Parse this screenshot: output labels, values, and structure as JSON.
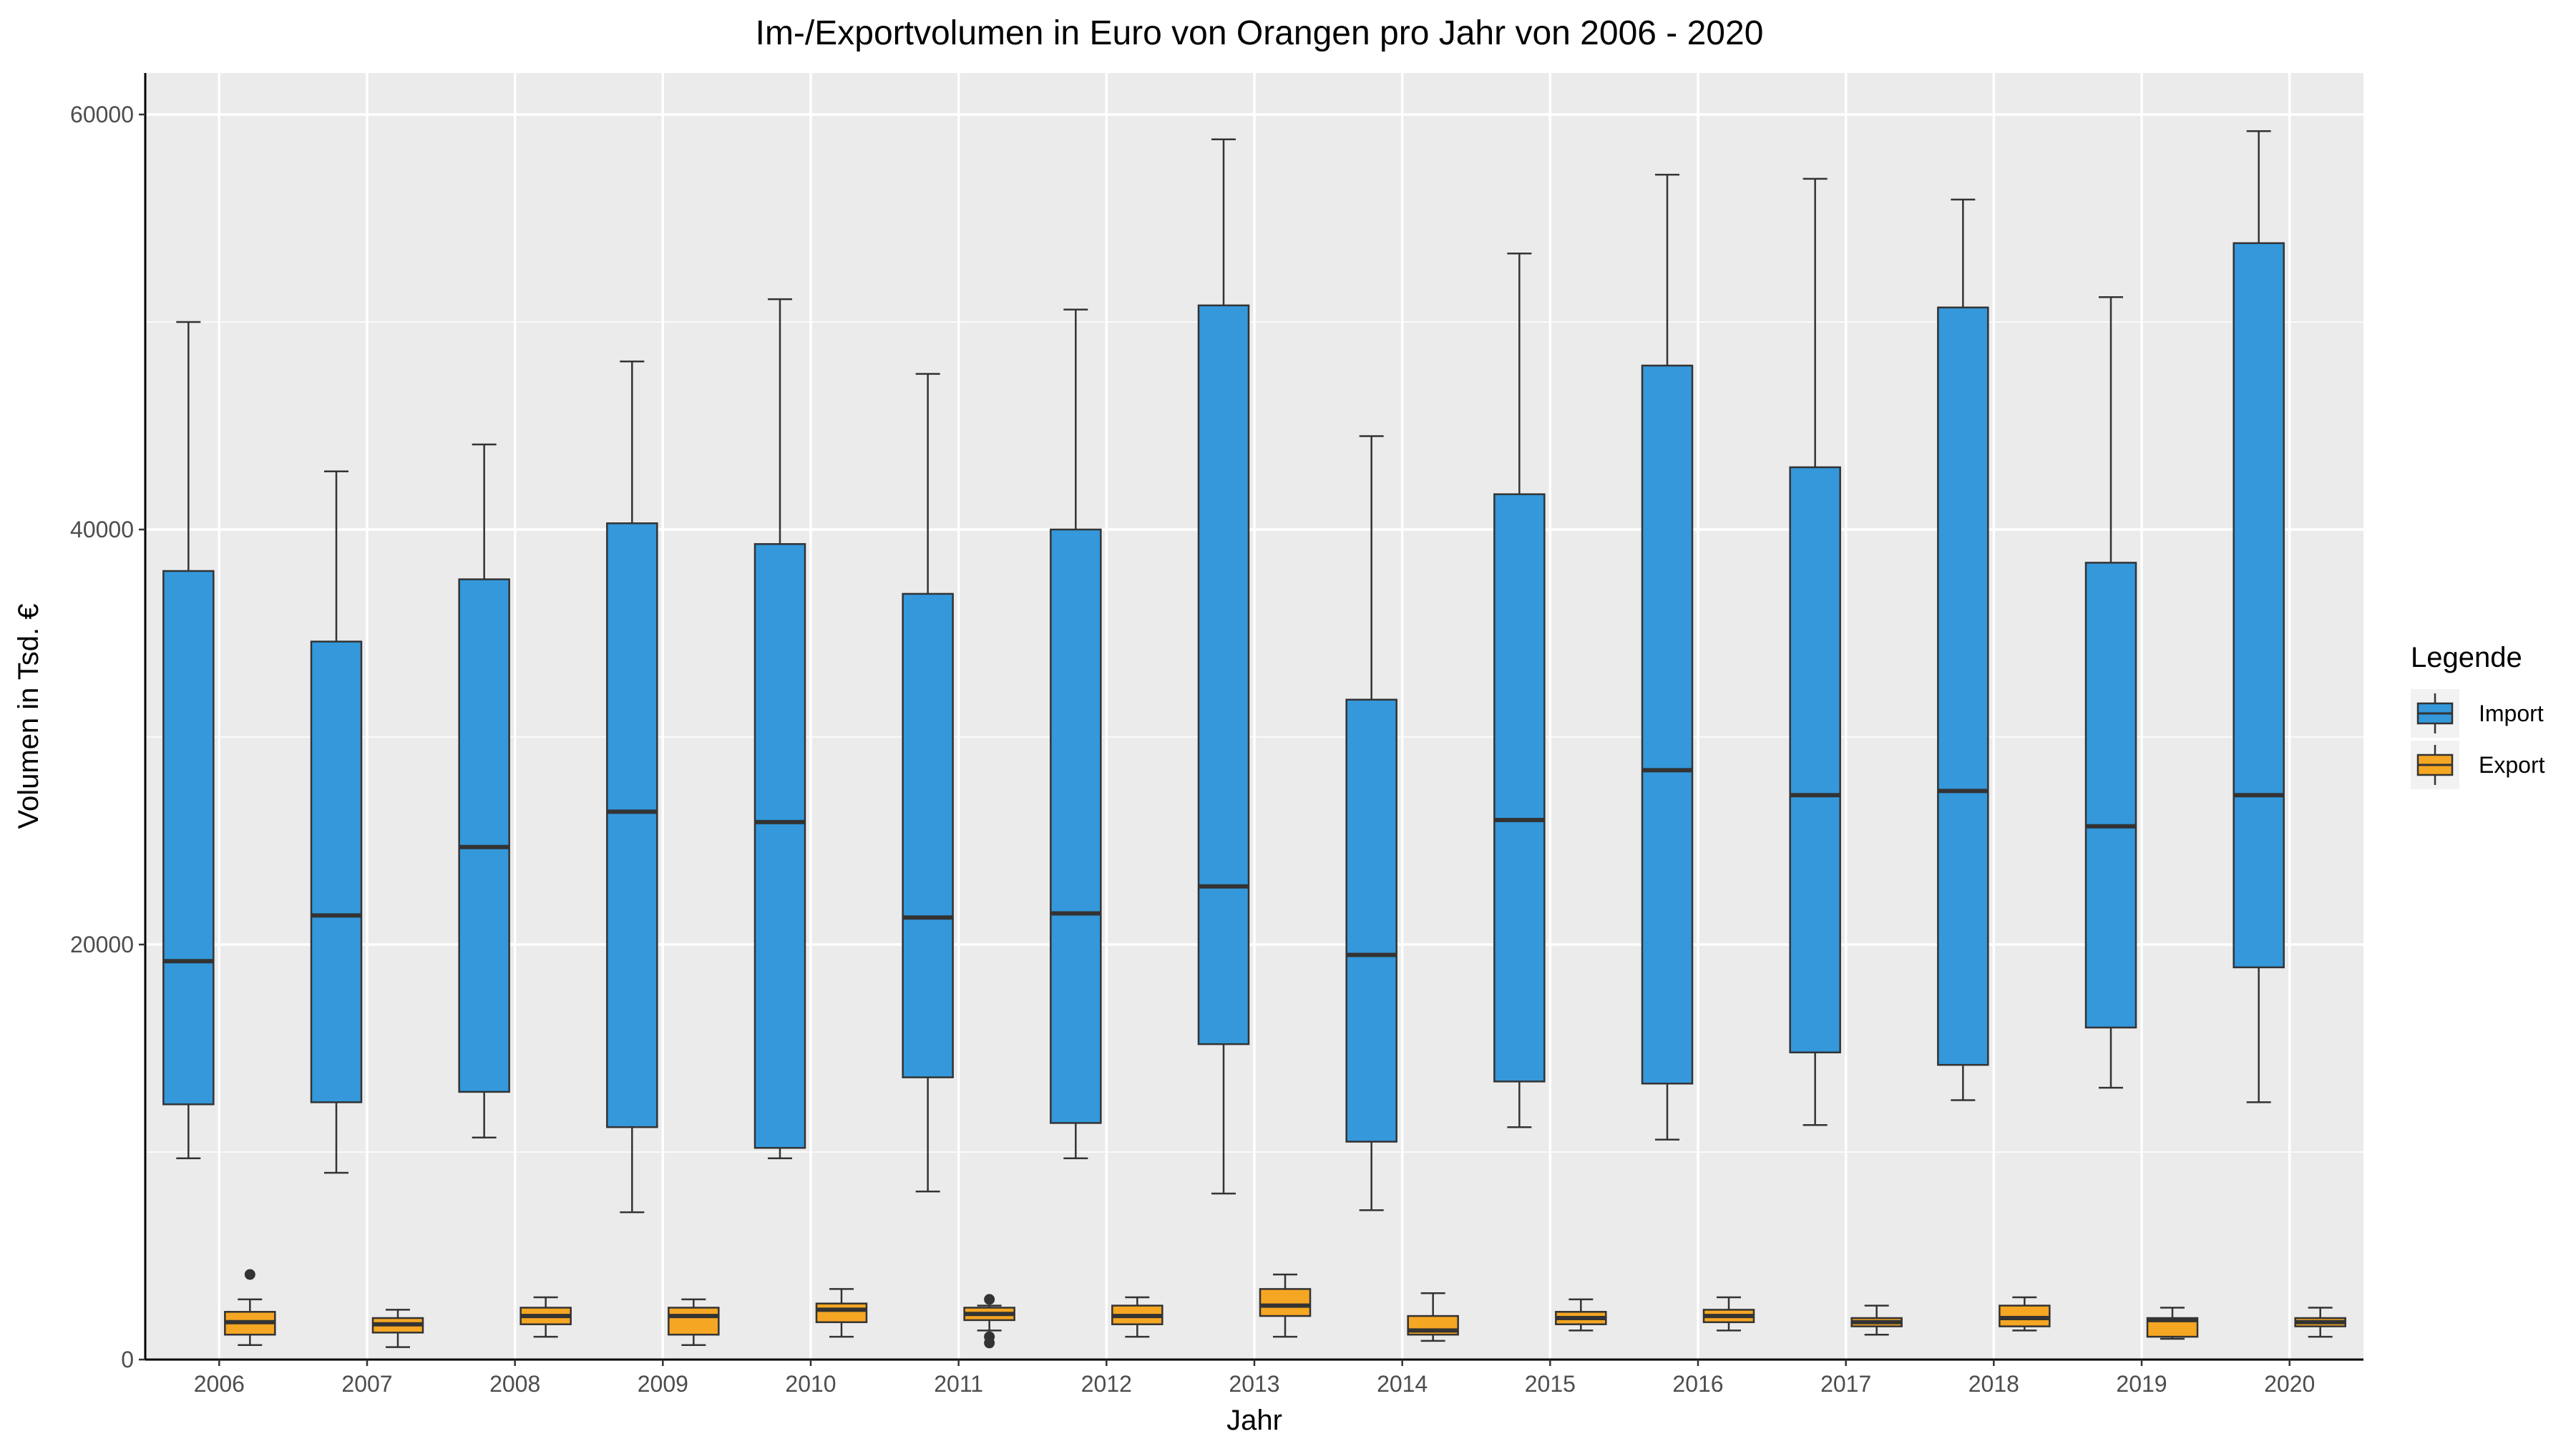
{
  "chart_data": {
    "type": "boxplot",
    "title": "Im-/Exportvolumen in Euro von Orangen pro Jahr von 2006 - 2020",
    "xlabel": "Jahr",
    "ylabel": "Volumen in Tsd. €",
    "ylim": [
      0,
      62000
    ],
    "yticks": [
      0,
      20000,
      40000,
      60000
    ],
    "grid": true,
    "legend": {
      "title": "Legende",
      "position": "right"
    },
    "categories": [
      "2006",
      "2007",
      "2008",
      "2009",
      "2010",
      "2011",
      "2012",
      "2013",
      "2014",
      "2015",
      "2016",
      "2017",
      "2018",
      "2019",
      "2020"
    ],
    "series": [
      {
        "name": "Import",
        "color": "#3498db",
        "boxes": [
          {
            "min": 9700,
            "q1": 12300,
            "median": 19200,
            "q3": 38000,
            "max": 50000,
            "outliers": []
          },
          {
            "min": 9000,
            "q1": 12400,
            "median": 21400,
            "q3": 34600,
            "max": 42800,
            "outliers": []
          },
          {
            "min": 10700,
            "q1": 12900,
            "median": 24700,
            "q3": 37600,
            "max": 44100,
            "outliers": []
          },
          {
            "min": 7100,
            "q1": 11200,
            "median": 26400,
            "q3": 40300,
            "max": 48100,
            "outliers": []
          },
          {
            "min": 9700,
            "q1": 10200,
            "median": 25900,
            "q3": 39300,
            "max": 51100,
            "outliers": []
          },
          {
            "min": 8100,
            "q1": 13600,
            "median": 21300,
            "q3": 36900,
            "max": 47500,
            "outliers": []
          },
          {
            "min": 9700,
            "q1": 11400,
            "median": 21500,
            "q3": 40000,
            "max": 50600,
            "outliers": []
          },
          {
            "min": 8000,
            "q1": 15200,
            "median": 22800,
            "q3": 50800,
            "max": 58800,
            "outliers": []
          },
          {
            "min": 7200,
            "q1": 10500,
            "median": 19500,
            "q3": 31800,
            "max": 44500,
            "outliers": []
          },
          {
            "min": 11200,
            "q1": 13400,
            "median": 26000,
            "q3": 41700,
            "max": 53300,
            "outliers": []
          },
          {
            "min": 10600,
            "q1": 13300,
            "median": 28400,
            "q3": 47900,
            "max": 57100,
            "outliers": []
          },
          {
            "min": 11300,
            "q1": 14800,
            "median": 27200,
            "q3": 43000,
            "max": 56900,
            "outliers": []
          },
          {
            "min": 12500,
            "q1": 14200,
            "median": 27400,
            "q3": 50700,
            "max": 55900,
            "outliers": []
          },
          {
            "min": 13100,
            "q1": 16000,
            "median": 25700,
            "q3": 38400,
            "max": 51200,
            "outliers": []
          },
          {
            "min": 12400,
            "q1": 18900,
            "median": 27200,
            "q3": 53800,
            "max": 59200,
            "outliers": []
          }
        ]
      },
      {
        "name": "Export",
        "color": "#f5a623",
        "boxes": [
          {
            "min": 700,
            "q1": 1200,
            "median": 1800,
            "q3": 2300,
            "max": 2900,
            "outliers": [
              4100
            ]
          },
          {
            "min": 600,
            "q1": 1300,
            "median": 1700,
            "q3": 2000,
            "max": 2400,
            "outliers": []
          },
          {
            "min": 1100,
            "q1": 1700,
            "median": 2100,
            "q3": 2500,
            "max": 3000,
            "outliers": []
          },
          {
            "min": 700,
            "q1": 1200,
            "median": 2100,
            "q3": 2500,
            "max": 2900,
            "outliers": []
          },
          {
            "min": 1100,
            "q1": 1800,
            "median": 2400,
            "q3": 2700,
            "max": 3400,
            "outliers": []
          },
          {
            "min": 1400,
            "q1": 1900,
            "median": 2200,
            "q3": 2500,
            "max": 2600,
            "outliers": [
              800,
              1100,
              2900
            ]
          },
          {
            "min": 1100,
            "q1": 1700,
            "median": 2100,
            "q3": 2600,
            "max": 3000,
            "outliers": []
          },
          {
            "min": 1100,
            "q1": 2100,
            "median": 2600,
            "q3": 3400,
            "max": 4100,
            "outliers": []
          },
          {
            "min": 900,
            "q1": 1200,
            "median": 1400,
            "q3": 2100,
            "max": 3200,
            "outliers": []
          },
          {
            "min": 1400,
            "q1": 1700,
            "median": 2000,
            "q3": 2300,
            "max": 2900,
            "outliers": []
          },
          {
            "min": 1400,
            "q1": 1800,
            "median": 2100,
            "q3": 2400,
            "max": 3000,
            "outliers": []
          },
          {
            "min": 1200,
            "q1": 1600,
            "median": 1800,
            "q3": 2000,
            "max": 2600,
            "outliers": []
          },
          {
            "min": 1400,
            "q1": 1600,
            "median": 2000,
            "q3": 2600,
            "max": 3000,
            "outliers": []
          },
          {
            "min": 1000,
            "q1": 1100,
            "median": 1900,
            "q3": 2000,
            "max": 2500,
            "outliers": []
          },
          {
            "min": 1100,
            "q1": 1600,
            "median": 1800,
            "q3": 2000,
            "max": 2500,
            "outliers": []
          }
        ]
      }
    ]
  }
}
